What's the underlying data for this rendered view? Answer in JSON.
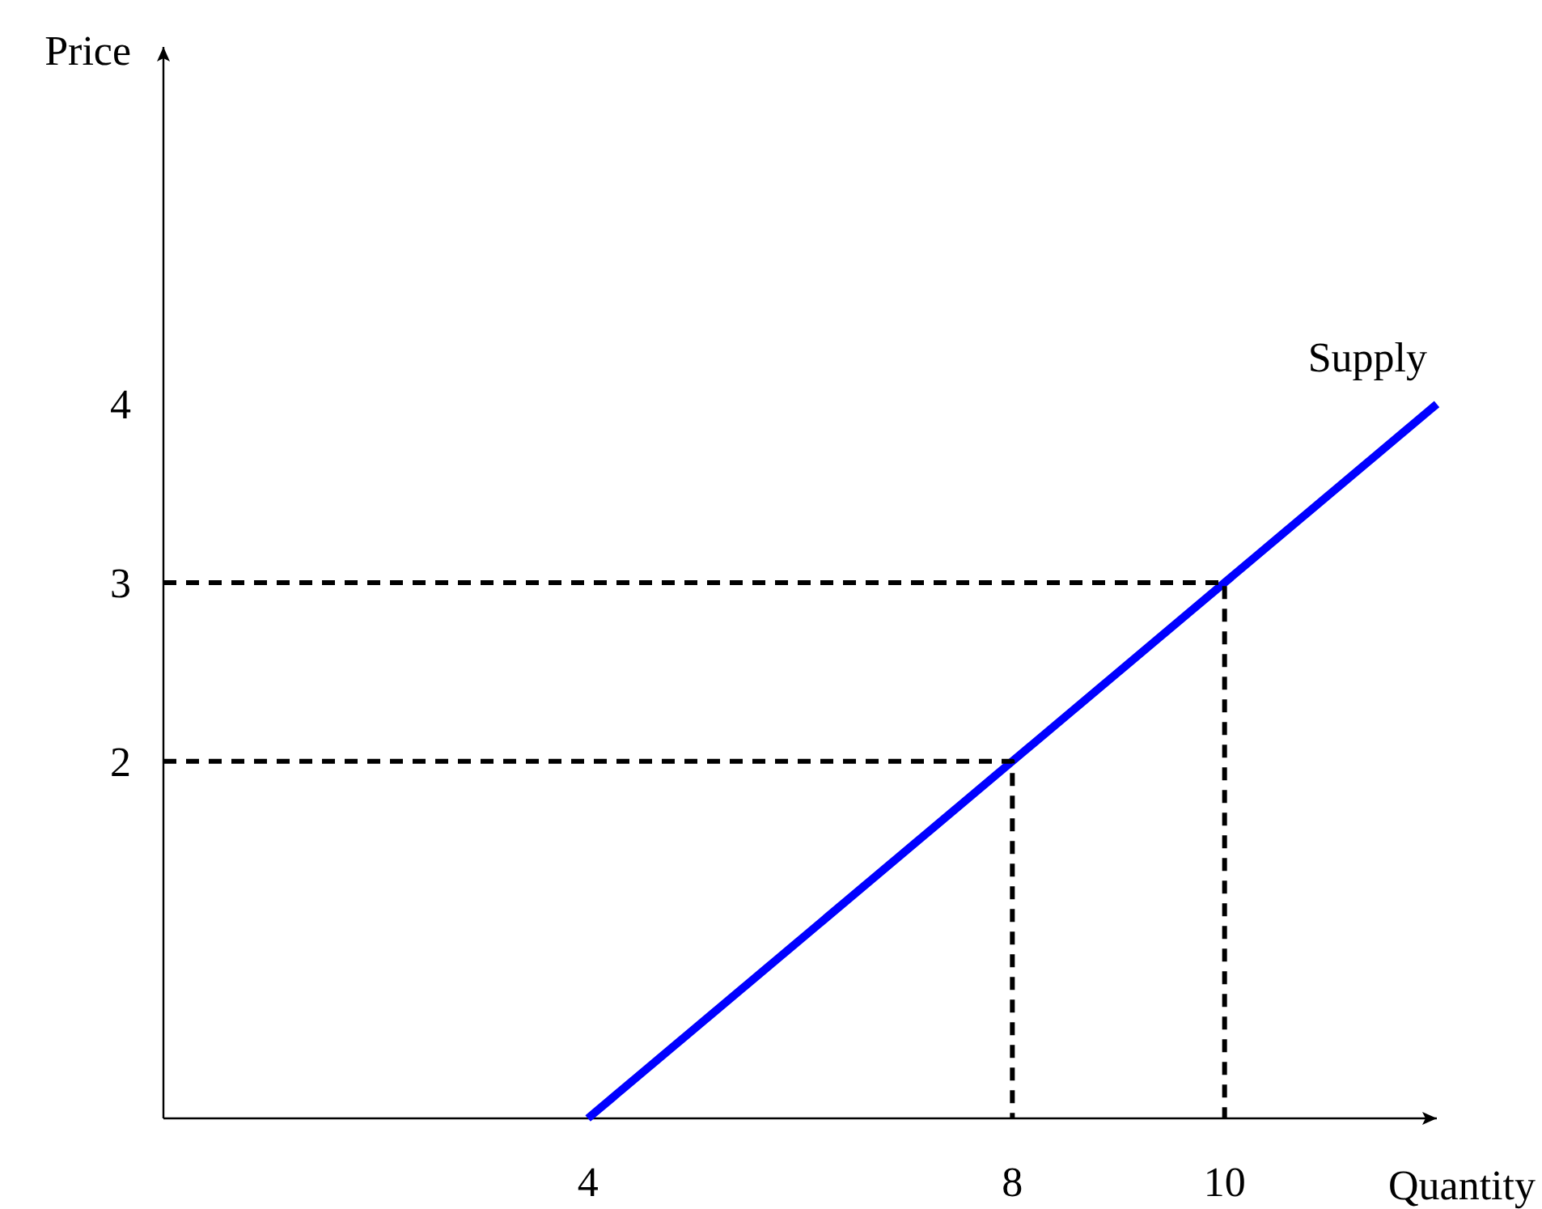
{
  "chart_data": {
    "type": "line",
    "xlabel": "Quantity",
    "ylabel": "Price",
    "xlim": [
      0,
      12
    ],
    "ylim": [
      0,
      6
    ],
    "xticks": [
      4,
      8,
      10
    ],
    "yticks": [
      2,
      3,
      4
    ],
    "grid": false,
    "marker": "none",
    "series": [
      {
        "name": "Supply",
        "color": "#0000ff",
        "x": [
          4,
          12
        ],
        "values": [
          0,
          4
        ],
        "line_style": "solid"
      },
      {
        "color": "#000000",
        "x": [
          0,
          10,
          10
        ],
        "values": [
          3,
          3,
          0
        ],
        "line_style": "dashed"
      },
      {
        "color": "#000000",
        "x": [
          0,
          8,
          8
        ],
        "values": [
          2,
          2,
          0
        ],
        "line_style": "dashed"
      }
    ]
  }
}
